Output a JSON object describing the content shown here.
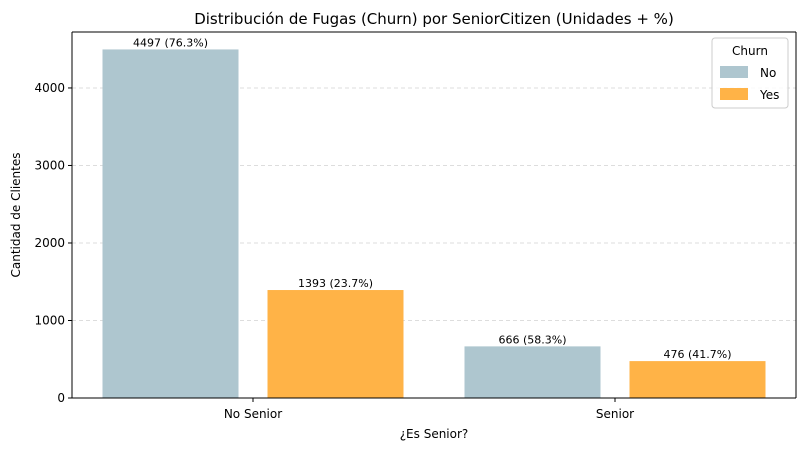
{
  "chart_data": {
    "type": "bar",
    "title": "Distribución de Fugas (Churn) por SeniorCitizen (Unidades + %)",
    "xlabel": "¿Es Senior?",
    "ylabel": "Cantidad de Clientes",
    "categories": [
      "No Senior",
      "Senior"
    ],
    "ylim": [
      0,
      4722
    ],
    "yticks": [
      0,
      1000,
      2000,
      3000,
      4000
    ],
    "grid": true,
    "legend": {
      "title": "Churn",
      "placement": "top-right"
    },
    "series": [
      {
        "name": "No",
        "color": "#aec6cf",
        "values": [
          4497,
          666
        ],
        "labels": [
          "4497 (76.3%)",
          "666 (58.3%)"
        ]
      },
      {
        "name": "Yes",
        "color": "#ffb347",
        "values": [
          1393,
          476
        ],
        "labels": [
          "1393 (23.7%)",
          "476 (41.7%)"
        ]
      }
    ]
  }
}
